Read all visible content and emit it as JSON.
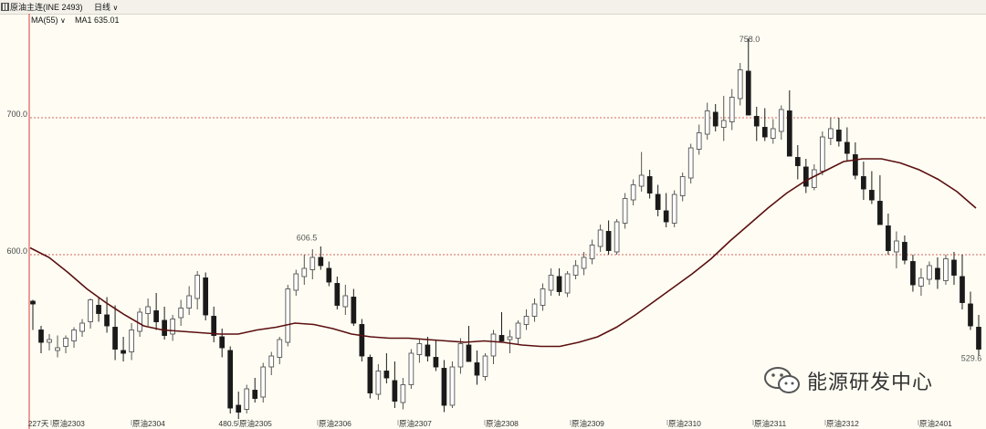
{
  "header": {
    "symbol": "原油主连(INE 2493)",
    "period": "日线",
    "ma_label": "MA(55)",
    "ma_value": "MA1 635.01"
  },
  "watermark": {
    "text": "能源研发中心",
    "icon": "wechat-icon"
  },
  "colors": {
    "up": "#555555",
    "down": "#1a1a1a",
    "ma": "#5a0f10",
    "grid": "#c33333",
    "axis": "#d83a3a"
  },
  "chart_data": {
    "type": "candlestick",
    "y_ticks": [
      600,
      700
    ],
    "y_tick_labels": [
      "600.0",
      "700.0"
    ],
    "ylim": [
      468,
      770
    ],
    "x_labels": [
      "227天",
      "原油2303",
      "原油2304",
      "480.5",
      "原油2305",
      "原油2306",
      "原油2307",
      "原油2308",
      "原油2309",
      "原油2310",
      "原油2311",
      "原油2312",
      "原油2401"
    ],
    "annotations": [
      {
        "text": "606.5",
        "value": 606.5
      },
      {
        "text": "758.0",
        "value": 758.0
      },
      {
        "text": "529.6",
        "value": 529.6
      }
    ],
    "low_label": {
      "text": "480.5",
      "value": 480.5
    },
    "ma_series": {
      "name": "MA(55)",
      "last": 635.01
    },
    "ma_shape": [
      605,
      598,
      587,
      575,
      565,
      556,
      548,
      545,
      544,
      543,
      542,
      542,
      545,
      547,
      550,
      549,
      546,
      542,
      540,
      539,
      539,
      538,
      537,
      536,
      537,
      536,
      534,
      533,
      533,
      536,
      540,
      547,
      556,
      566,
      576,
      586,
      597,
      610,
      622,
      634,
      645,
      654,
      661,
      668,
      670,
      670,
      667,
      662,
      655,
      646,
      634
    ],
    "ohlc_shape": [
      [
        566,
        567,
        545,
        564
      ],
      [
        545,
        548,
        528,
        536
      ],
      [
        536,
        542,
        530,
        538
      ],
      [
        530,
        541,
        525,
        532
      ],
      [
        533,
        541,
        528,
        539
      ],
      [
        537,
        547,
        532,
        545
      ],
      [
        544,
        553,
        540,
        550
      ],
      [
        551,
        568,
        546,
        567
      ],
      [
        563,
        569,
        551,
        557
      ],
      [
        556,
        569,
        543,
        548
      ],
      [
        547,
        563,
        523,
        531
      ],
      [
        530,
        540,
        522,
        528
      ],
      [
        529,
        550,
        523,
        545
      ],
      [
        544,
        561,
        540,
        558
      ],
      [
        557,
        568,
        548,
        562
      ],
      [
        559,
        572,
        545,
        551
      ],
      [
        552,
        562,
        538,
        541
      ],
      [
        542,
        556,
        537,
        553
      ],
      [
        554,
        567,
        548,
        561
      ],
      [
        561,
        577,
        556,
        570
      ],
      [
        568,
        588,
        560,
        585
      ],
      [
        583,
        587,
        552,
        556
      ],
      [
        555,
        562,
        536,
        541
      ],
      [
        540,
        546,
        525,
        532
      ],
      [
        530,
        533,
        484,
        488
      ],
      [
        490,
        500,
        480,
        485
      ],
      [
        487,
        505,
        484,
        502
      ],
      [
        501,
        510,
        492,
        495
      ],
      [
        496,
        521,
        492,
        518
      ],
      [
        518,
        529,
        512,
        526
      ],
      [
        525,
        540,
        520,
        538
      ],
      [
        536,
        578,
        533,
        575
      ],
      [
        574,
        589,
        570,
        586
      ],
      [
        584,
        600,
        578,
        590
      ],
      [
        589,
        604,
        582,
        598
      ],
      [
        598,
        606,
        589,
        592
      ],
      [
        590,
        595,
        577,
        580
      ],
      [
        579,
        584,
        560,
        563
      ],
      [
        562,
        578,
        556,
        570
      ],
      [
        569,
        575,
        548,
        550
      ],
      [
        549,
        553,
        522,
        526
      ],
      [
        525,
        527,
        495,
        499
      ],
      [
        498,
        520,
        494,
        515
      ],
      [
        515,
        528,
        506,
        510
      ],
      [
        508,
        522,
        488,
        493
      ],
      [
        492,
        510,
        487,
        505
      ],
      [
        505,
        531,
        502,
        528
      ],
      [
        527,
        538,
        521,
        535
      ],
      [
        534,
        540,
        522,
        526
      ],
      [
        525,
        538,
        515,
        518
      ],
      [
        517,
        523,
        485,
        490
      ],
      [
        490,
        522,
        488,
        518
      ],
      [
        518,
        539,
        513,
        535
      ],
      [
        534,
        548,
        528,
        522
      ],
      [
        521,
        530,
        505,
        512
      ],
      [
        511,
        528,
        508,
        526
      ],
      [
        526,
        545,
        520,
        542
      ],
      [
        541,
        558,
        536,
        537
      ],
      [
        538,
        545,
        528,
        540
      ],
      [
        539,
        552,
        534,
        550
      ],
      [
        549,
        560,
        545,
        555
      ],
      [
        555,
        568,
        551,
        564
      ],
      [
        563,
        579,
        559,
        575
      ],
      [
        574,
        590,
        570,
        585
      ],
      [
        584,
        590,
        570,
        573
      ],
      [
        572,
        588,
        569,
        586
      ],
      [
        585,
        596,
        582,
        592
      ],
      [
        590,
        602,
        585,
        598
      ],
      [
        597,
        611,
        593,
        607
      ],
      [
        606,
        622,
        602,
        618
      ],
      [
        617,
        625,
        600,
        603
      ],
      [
        602,
        626,
        600,
        624
      ],
      [
        623,
        645,
        619,
        641
      ],
      [
        640,
        655,
        636,
        651
      ],
      [
        650,
        675,
        646,
        658
      ],
      [
        657,
        662,
        641,
        645
      ],
      [
        644,
        651,
        628,
        633
      ],
      [
        632,
        645,
        620,
        624
      ],
      [
        623,
        647,
        620,
        644
      ],
      [
        643,
        660,
        639,
        657
      ],
      [
        656,
        681,
        652,
        678
      ],
      [
        677,
        695,
        673,
        689
      ],
      [
        688,
        711,
        684,
        705
      ],
      [
        704,
        710,
        690,
        694
      ],
      [
        693,
        716,
        683,
        698
      ],
      [
        697,
        721,
        691,
        715
      ],
      [
        714,
        740,
        709,
        735
      ],
      [
        734,
        758,
        724,
        702
      ],
      [
        701,
        708,
        683,
        694
      ],
      [
        693,
        707,
        683,
        686
      ],
      [
        685,
        699,
        681,
        692
      ],
      [
        690,
        709,
        684,
        706
      ],
      [
        705,
        720,
        694,
        672
      ],
      [
        671,
        680,
        655,
        665
      ],
      [
        664,
        670,
        645,
        650
      ],
      [
        649,
        666,
        647,
        662
      ],
      [
        661,
        690,
        658,
        686
      ],
      [
        685,
        700,
        680,
        692
      ],
      [
        691,
        700,
        679,
        683
      ],
      [
        682,
        693,
        668,
        674
      ],
      [
        673,
        682,
        655,
        658
      ],
      [
        657,
        668,
        640,
        648
      ],
      [
        647,
        661,
        637,
        640
      ],
      [
        639,
        658,
        635,
        622
      ],
      [
        621,
        630,
        600,
        603
      ],
      [
        602,
        617,
        590,
        610
      ],
      [
        609,
        614,
        593,
        596
      ],
      [
        595,
        600,
        573,
        578
      ],
      [
        577,
        590,
        570,
        583
      ],
      [
        582,
        595,
        578,
        592
      ],
      [
        590,
        598,
        575,
        582
      ],
      [
        581,
        600,
        578,
        597
      ],
      [
        596,
        602,
        578,
        585
      ],
      [
        584,
        600,
        560,
        565
      ],
      [
        564,
        573,
        545,
        548
      ],
      [
        547,
        556,
        526,
        531
      ]
    ]
  }
}
